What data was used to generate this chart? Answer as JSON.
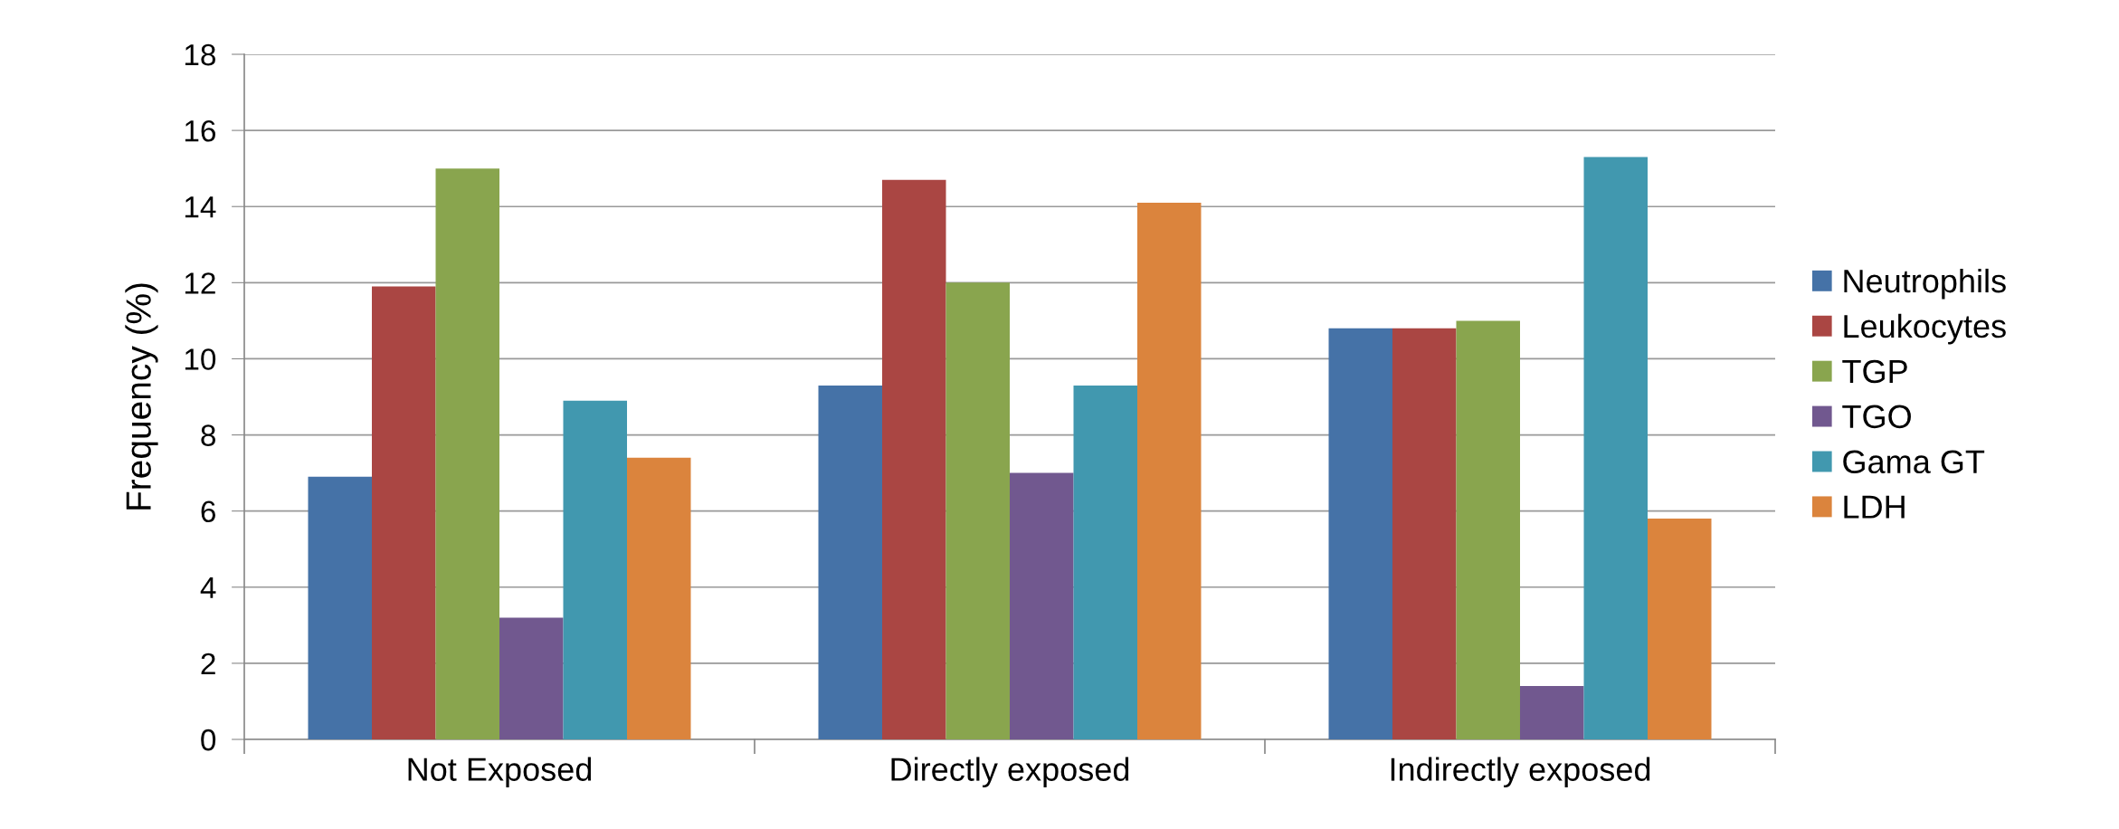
{
  "chart_data": {
    "type": "bar",
    "ylabel": "Frequency (%)",
    "categories": [
      "Not Exposed",
      "Directly exposed",
      "Indirectly exposed"
    ],
    "series": [
      {
        "name": "Neutrophils",
        "color": "#4572a7",
        "values": [
          6.9,
          9.3,
          10.8
        ]
      },
      {
        "name": "Leukocytes",
        "color": "#aa4643",
        "values": [
          11.9,
          14.7,
          10.8
        ]
      },
      {
        "name": "TGP",
        "color": "#89a54e",
        "values": [
          15.0,
          12.0,
          11.0
        ]
      },
      {
        "name": "TGO",
        "color": "#71588f",
        "values": [
          3.2,
          7.0,
          1.4
        ]
      },
      {
        "name": "Gama GT",
        "color": "#4198af",
        "values": [
          8.9,
          9.3,
          15.3
        ]
      },
      {
        "name": "LDH",
        "color": "#db843d",
        "values": [
          7.4,
          14.1,
          5.8
        ]
      }
    ],
    "ylim": [
      0,
      18
    ],
    "yticks": [
      0,
      2,
      4,
      6,
      8,
      10,
      12,
      14,
      16,
      18
    ],
    "grid": "y",
    "legend": "right"
  }
}
